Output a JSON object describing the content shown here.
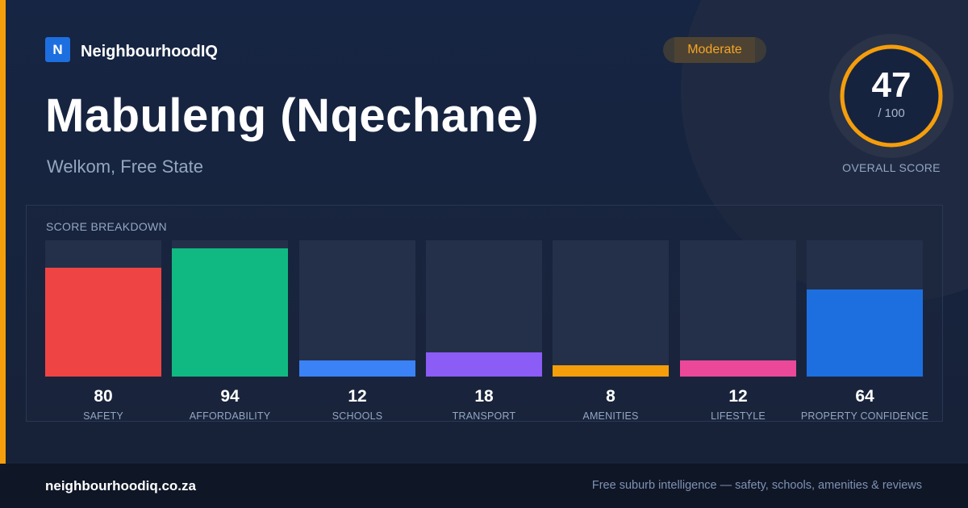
{
  "brand": {
    "logo_letter": "N",
    "name": "NeighbourhoodIQ",
    "color": "#1d6fe0"
  },
  "badge": {
    "label": "Moderate",
    "color": "#f5a524"
  },
  "suburb": {
    "name": "Mabuleng (Nqechane)",
    "location": "Welkom, Free State"
  },
  "overall": {
    "score": "47",
    "max": "/ 100",
    "caption": "OVERALL SCORE",
    "score_value": 47,
    "ring_color": "#f59e0b"
  },
  "breakdown": {
    "title": "SCORE BREAKDOWN",
    "items": [
      {
        "value": "80",
        "label": "SAFETY",
        "score": 80,
        "color": "#ef4444"
      },
      {
        "value": "94",
        "label": "AFFORDABILITY",
        "score": 94,
        "color": "#10b981"
      },
      {
        "value": "12",
        "label": "SCHOOLS",
        "score": 12,
        "color": "#3b82f6"
      },
      {
        "value": "18",
        "label": "TRANSPORT",
        "score": 18,
        "color": "#8b5cf6"
      },
      {
        "value": "8",
        "label": "AMENITIES",
        "score": 8,
        "color": "#f59e0b"
      },
      {
        "value": "12",
        "label": "LIFESTYLE",
        "score": 12,
        "color": "#ec4899"
      },
      {
        "value": "64",
        "label": "PROPERTY CONFIDENCE",
        "score": 64,
        "color": "#1d6fe0"
      }
    ]
  },
  "footer": {
    "url": "neighbourhoodiq.co.za",
    "tagline": "Free suburb intelligence — safety, schools, amenities & reviews"
  }
}
